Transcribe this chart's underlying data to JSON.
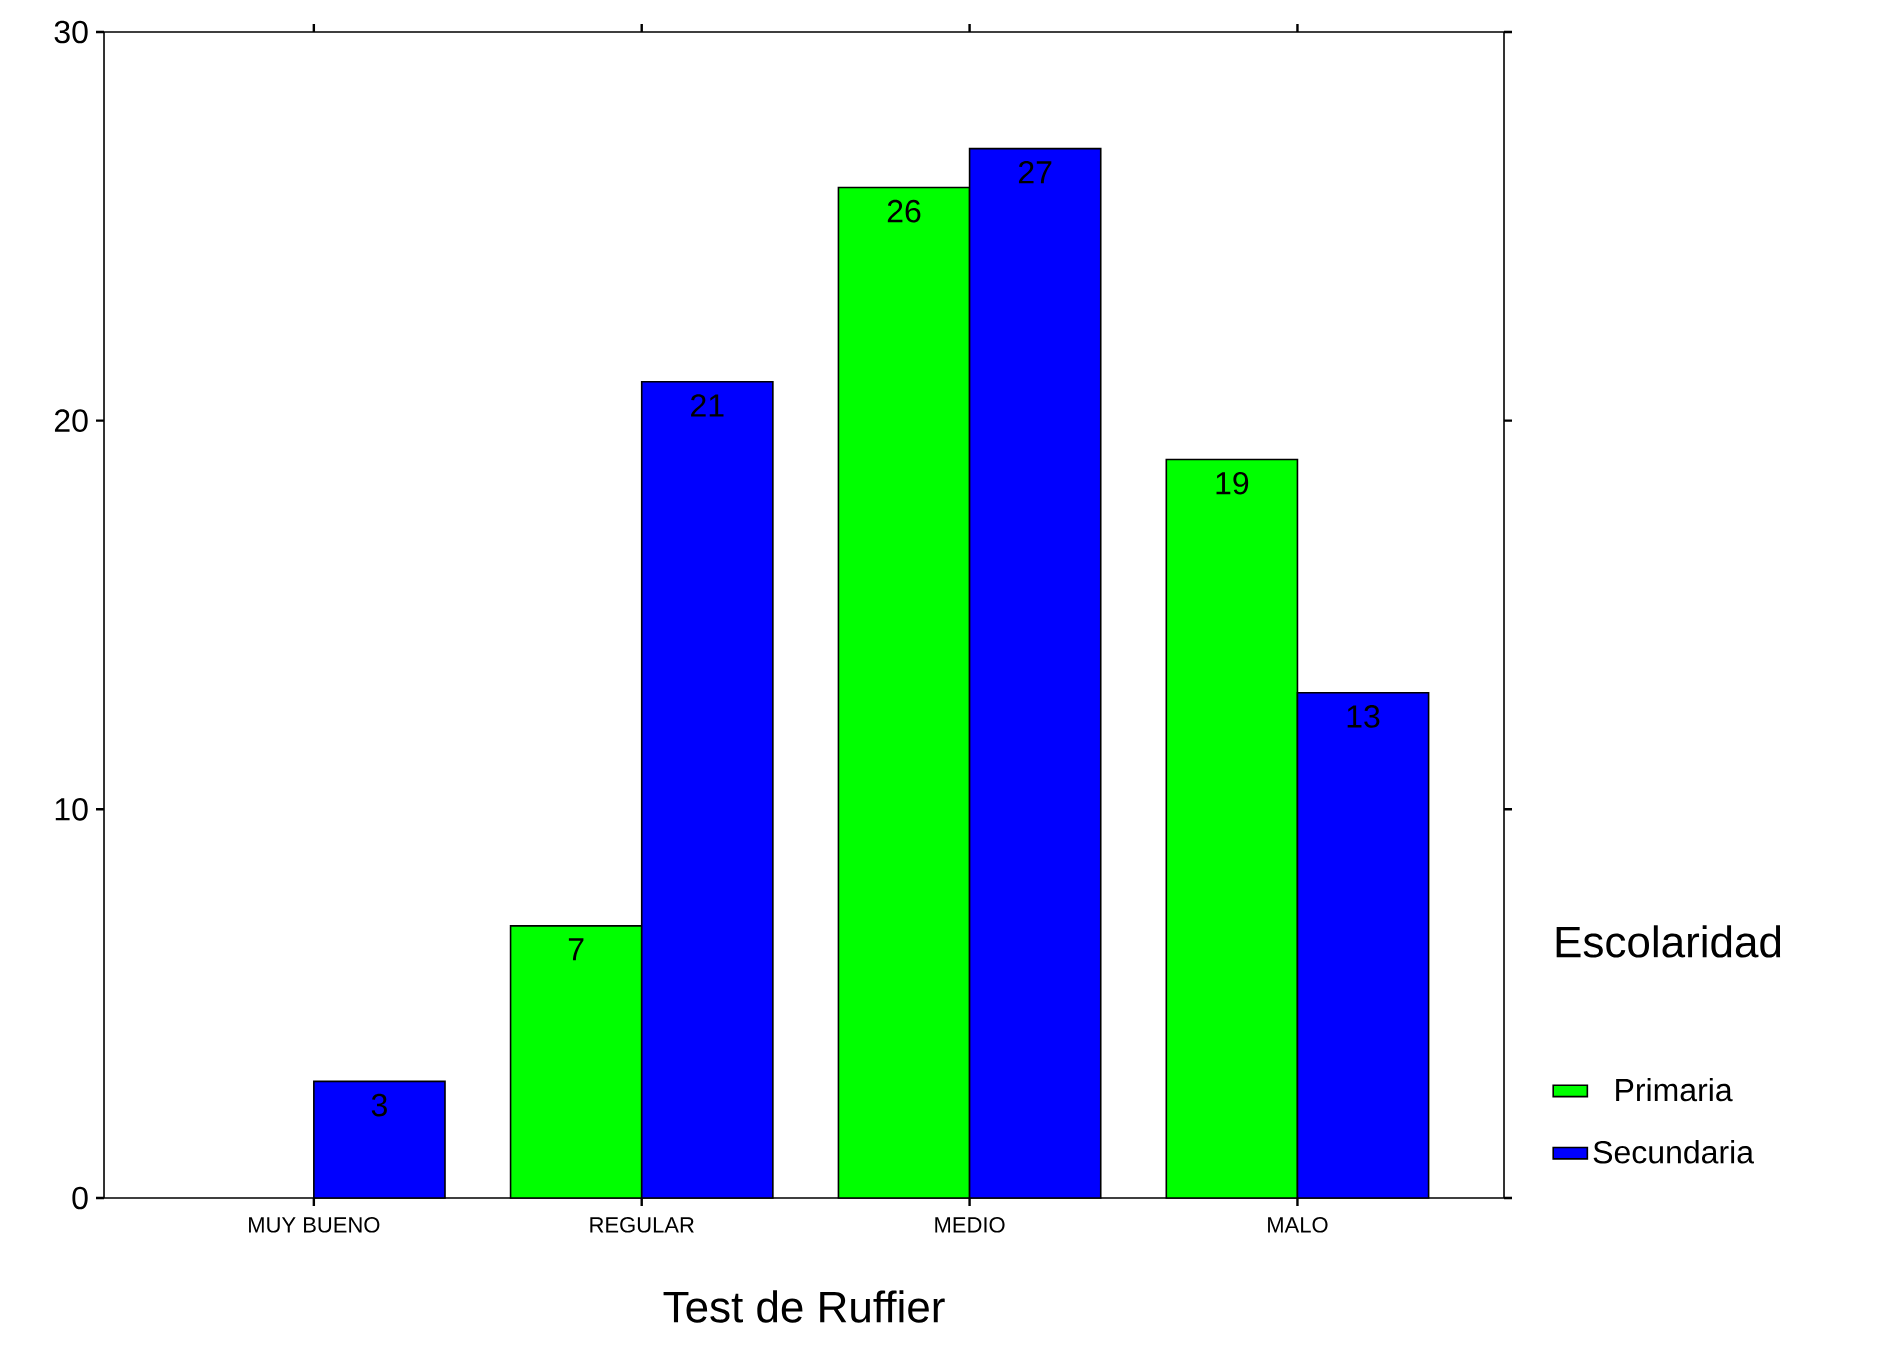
{
  "chart_data": {
    "type": "bar",
    "xlabel": "Test de Ruffier",
    "legend_title": "Escolaridad",
    "categories": [
      "MUY BUENO",
      "REGULAR",
      "MEDIO",
      "MALO"
    ],
    "series": [
      {
        "name": "Primaria",
        "color": "#00ff00",
        "values": [
          null,
          7,
          26,
          19
        ]
      },
      {
        "name": "Secundaria",
        "color": "#0000ff",
        "values": [
          3,
          21,
          27,
          13
        ]
      }
    ],
    "ylim": [
      0,
      30
    ],
    "yticks": [
      0,
      10,
      20,
      30
    ],
    "grid": false,
    "legend": "right",
    "data_labels": true
  }
}
